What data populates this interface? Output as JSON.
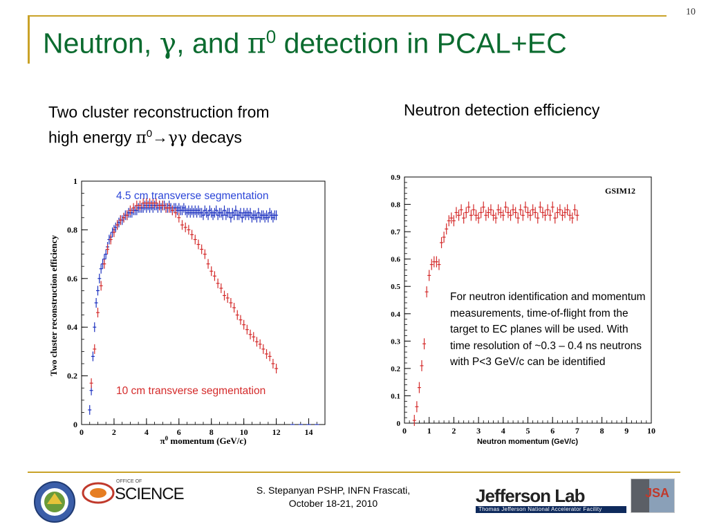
{
  "slide_number": "10",
  "title": {
    "part1": "Neutron, ",
    "gamma": "γ",
    "part2": ", and ",
    "pi": "π",
    "sup": "0",
    "part3": " detection in PCAL+EC"
  },
  "left_heading": {
    "line1": "Two cluster reconstruction from",
    "prefix": "high energy ",
    "pi": "π",
    "sup": "0",
    "arrow": "→",
    "gammas": "γγ",
    "suffix": " decays"
  },
  "right_heading": "Neutron detection efficiency",
  "note": "For neutron identification and momentum measurements, time-of-flight from the target to EC planes will be used. With time resolution of ~0.3 – 0.4 ns neutrons with P<3 GeV/c can be identified",
  "footer": {
    "line1": "S. Stepanyan PSHP, INFN Frascati,",
    "line2": "October 18-21, 2010"
  },
  "logos": {
    "science_prefix": "OFFICE OF",
    "science": "SCIENCE",
    "jlab": "Jefferson Lab",
    "jlab_sub": "Thomas Jefferson National Accelerator Facility",
    "jsa": "JSA"
  },
  "chart_data": [
    {
      "type": "scatter",
      "ylabel": "Two cluster reconstruction efficiency",
      "xlabel_pi": "π",
      "xlabel_sup": "0",
      "xlabel_rest": " momentum (GeV/c)",
      "xlim": [
        0,
        15
      ],
      "ylim": [
        0,
        1.0
      ],
      "xticks": [
        "0",
        "2",
        "4",
        "6",
        "8",
        "10",
        "12",
        "14"
      ],
      "yticks": [
        "0",
        "0.2",
        "0.4",
        "0.6",
        "0.8",
        "1"
      ],
      "colors": {
        "blue": "#1a2fbf",
        "red": "#d42a2a"
      },
      "series": [
        {
          "name": "4.5 cm transverse segmentation",
          "x": [
            0.5,
            0.6,
            0.7,
            0.8,
            0.9,
            1.0,
            1.1,
            1.2,
            1.3,
            1.4,
            1.5,
            1.6,
            1.7,
            1.8,
            1.9,
            2.0,
            2.1,
            2.2,
            2.3,
            2.4,
            2.5,
            2.6,
            2.7,
            2.8,
            2.9,
            3.0,
            3.1,
            3.2,
            3.3,
            3.4,
            3.5,
            3.6,
            3.7,
            3.8,
            3.9,
            4.0,
            4.1,
            4.2,
            4.3,
            4.4,
            4.5,
            4.6,
            4.7,
            4.8,
            4.9,
            5.0,
            5.1,
            5.2,
            5.3,
            5.4,
            5.5,
            5.6,
            5.7,
            5.8,
            5.9,
            6.0,
            6.1,
            6.2,
            6.3,
            6.4,
            6.5,
            6.6,
            6.7,
            6.8,
            6.9,
            7.0,
            7.1,
            7.2,
            7.3,
            7.4,
            7.5,
            7.6,
            7.7,
            7.8,
            7.9,
            8.0,
            8.1,
            8.2,
            8.3,
            8.4,
            8.5,
            8.6,
            8.7,
            8.8,
            8.9,
            9.0,
            9.1,
            9.2,
            9.3,
            9.4,
            9.5,
            9.6,
            9.7,
            9.8,
            9.9,
            10.0,
            10.1,
            10.2,
            10.3,
            10.4,
            10.5,
            10.6,
            10.7,
            10.8,
            10.9,
            11.0,
            11.1,
            11.2,
            11.3,
            11.4,
            11.5,
            11.6,
            11.7,
            11.8,
            11.9,
            12.0
          ],
          "y": [
            0.06,
            0.14,
            0.28,
            0.4,
            0.5,
            0.55,
            0.6,
            0.64,
            0.66,
            0.68,
            0.7,
            0.73,
            0.76,
            0.77,
            0.79,
            0.8,
            0.81,
            0.82,
            0.83,
            0.84,
            0.84,
            0.85,
            0.86,
            0.86,
            0.87,
            0.87,
            0.87,
            0.88,
            0.88,
            0.88,
            0.89,
            0.89,
            0.89,
            0.89,
            0.9,
            0.89,
            0.9,
            0.89,
            0.9,
            0.89,
            0.9,
            0.9,
            0.89,
            0.9,
            0.89,
            0.9,
            0.9,
            0.89,
            0.89,
            0.9,
            0.89,
            0.88,
            0.89,
            0.89,
            0.88,
            0.89,
            0.88,
            0.88,
            0.89,
            0.88,
            0.87,
            0.88,
            0.87,
            0.88,
            0.87,
            0.88,
            0.87,
            0.88,
            0.87,
            0.87,
            0.86,
            0.88,
            0.87,
            0.86,
            0.88,
            0.87,
            0.86,
            0.87,
            0.88,
            0.86,
            0.87,
            0.87,
            0.86,
            0.88,
            0.86,
            0.87,
            0.87,
            0.85,
            0.87,
            0.86,
            0.88,
            0.86,
            0.86,
            0.87,
            0.85,
            0.87,
            0.86,
            0.87,
            0.86,
            0.87,
            0.85,
            0.86,
            0.86,
            0.85,
            0.87,
            0.85,
            0.86,
            0.86,
            0.85,
            0.86,
            0.85,
            0.87,
            0.86,
            0.85,
            0.86,
            0.86
          ]
        },
        {
          "name": "10 cm transverse segmentation",
          "x": [
            0.6,
            0.8,
            1.0,
            1.2,
            1.4,
            1.6,
            1.8,
            2.0,
            2.2,
            2.4,
            2.6,
            2.8,
            3.0,
            3.2,
            3.4,
            3.6,
            3.8,
            4.0,
            4.2,
            4.4,
            4.6,
            4.8,
            5.0,
            5.2,
            5.4,
            5.6,
            5.8,
            6.0,
            6.2,
            6.4,
            6.6,
            6.8,
            7.0,
            7.2,
            7.4,
            7.6,
            7.8,
            8.0,
            8.2,
            8.4,
            8.6,
            8.8,
            9.0,
            9.2,
            9.4,
            9.6,
            9.8,
            10.0,
            10.2,
            10.4,
            10.6,
            10.8,
            11.0,
            11.2,
            11.4,
            11.6,
            11.8,
            12.0
          ],
          "y": [
            0.17,
            0.31,
            0.46,
            0.57,
            0.66,
            0.72,
            0.76,
            0.79,
            0.82,
            0.84,
            0.85,
            0.86,
            0.88,
            0.89,
            0.9,
            0.9,
            0.91,
            0.91,
            0.91,
            0.91,
            0.91,
            0.9,
            0.9,
            0.89,
            0.89,
            0.88,
            0.87,
            0.85,
            0.82,
            0.81,
            0.8,
            0.78,
            0.76,
            0.74,
            0.72,
            0.7,
            0.66,
            0.63,
            0.61,
            0.58,
            0.56,
            0.53,
            0.52,
            0.5,
            0.48,
            0.45,
            0.43,
            0.41,
            0.39,
            0.37,
            0.36,
            0.34,
            0.33,
            0.31,
            0.29,
            0.28,
            0.25,
            0.23
          ]
        }
      ]
    },
    {
      "type": "scatter",
      "label": "GSIM12",
      "xlabel": "Neutron momentum (GeV/c)",
      "xlim": [
        0,
        10
      ],
      "ylim": [
        0,
        0.9
      ],
      "xticks": [
        "0",
        "1",
        "2",
        "3",
        "4",
        "5",
        "6",
        "7",
        "8",
        "9",
        "10"
      ],
      "yticks": [
        "0",
        "0.1",
        "0.2",
        "0.3",
        "0.4",
        "0.5",
        "0.6",
        "0.7",
        "0.8",
        "0.9"
      ],
      "color": "#d42a2a",
      "series": [
        {
          "x": [
            0.4,
            0.5,
            0.6,
            0.7,
            0.8,
            0.9,
            1.0,
            1.1,
            1.2,
            1.3,
            1.4,
            1.5,
            1.6,
            1.7,
            1.8,
            1.9,
            2.0,
            2.1,
            2.2,
            2.3,
            2.4,
            2.5,
            2.6,
            2.7,
            2.8,
            2.9,
            3.0,
            3.1,
            3.2,
            3.3,
            3.4,
            3.5,
            3.6,
            3.7,
            3.8,
            3.9,
            4.0,
            4.1,
            4.2,
            4.3,
            4.4,
            4.5,
            4.6,
            4.7,
            4.8,
            4.9,
            5.0,
            5.1,
            5.2,
            5.3,
            5.4,
            5.5,
            5.6,
            5.7,
            5.8,
            5.9,
            6.0,
            6.1,
            6.2,
            6.3,
            6.4,
            6.5,
            6.6,
            6.7,
            6.8,
            6.9,
            7.0
          ],
          "y": [
            0.01,
            0.06,
            0.13,
            0.21,
            0.29,
            0.48,
            0.54,
            0.58,
            0.59,
            0.59,
            0.58,
            0.66,
            0.68,
            0.71,
            0.74,
            0.75,
            0.74,
            0.77,
            0.76,
            0.78,
            0.75,
            0.77,
            0.79,
            0.76,
            0.78,
            0.76,
            0.75,
            0.77,
            0.79,
            0.76,
            0.77,
            0.78,
            0.76,
            0.75,
            0.78,
            0.77,
            0.76,
            0.79,
            0.77,
            0.76,
            0.78,
            0.77,
            0.75,
            0.78,
            0.76,
            0.79,
            0.77,
            0.76,
            0.78,
            0.77,
            0.75,
            0.79,
            0.77,
            0.76,
            0.78,
            0.76,
            0.79,
            0.75,
            0.77,
            0.78,
            0.76,
            0.77,
            0.78,
            0.76,
            0.75,
            0.78,
            0.76
          ]
        }
      ]
    }
  ]
}
